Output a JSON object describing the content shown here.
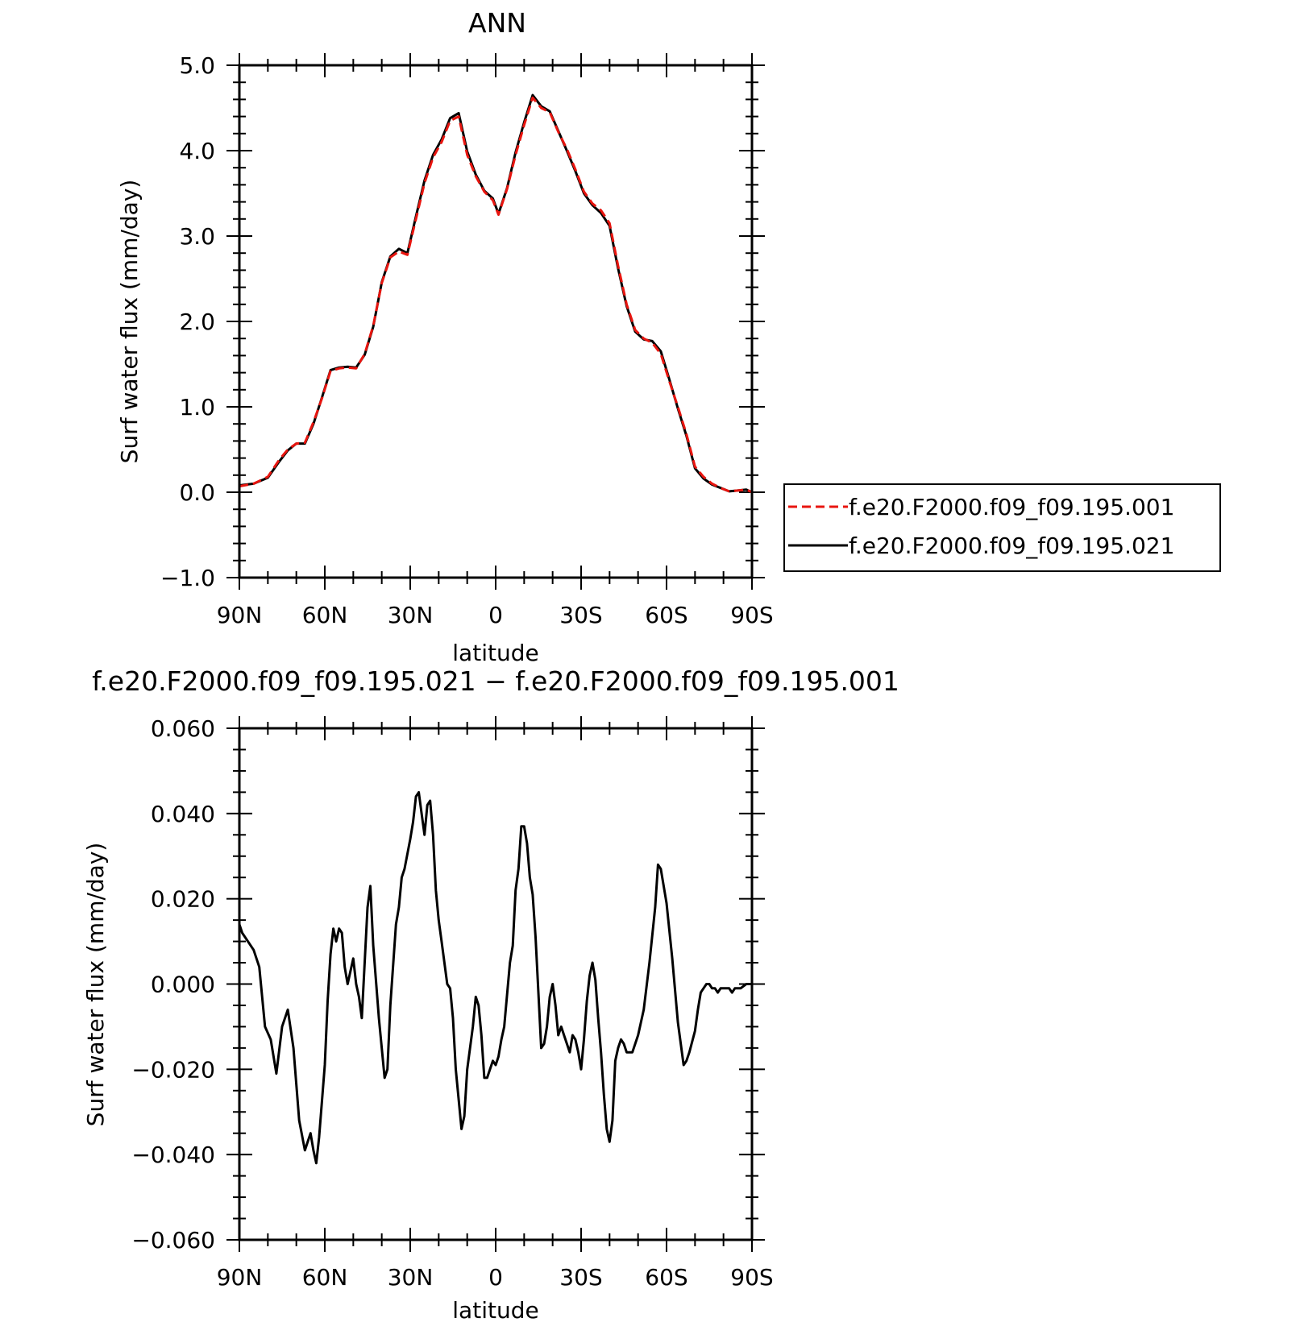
{
  "figure": {
    "panels": [
      "top",
      "bottom"
    ]
  },
  "chart_data": [
    {
      "type": "line",
      "title": "ANN",
      "xlabel": "latitude",
      "ylabel": "Surf water flux (mm/day)",
      "xlim": [
        90,
        -90
      ],
      "ylim": [
        -1.0,
        5.0
      ],
      "xticks": [
        90,
        60,
        30,
        0,
        -30,
        -60,
        -90
      ],
      "xticklabels": [
        "90N",
        "60N",
        "30N",
        "0",
        "30S",
        "60S",
        "90S"
      ],
      "yticks": [
        -1.0,
        0.0,
        1.0,
        2.0,
        3.0,
        4.0,
        5.0
      ],
      "yticklabels": [
        "−1.0",
        "0.0",
        "1.0",
        "2.0",
        "3.0",
        "4.0",
        "5.0"
      ],
      "legend": "outside-right",
      "x": [
        90,
        85,
        80,
        76,
        73,
        70,
        67,
        64,
        61,
        58,
        55,
        52,
        49,
        46,
        43,
        40,
        37,
        34,
        31,
        28,
        25,
        22,
        19,
        16,
        13,
        10,
        7,
        4,
        1,
        -1,
        -4,
        -7,
        -10,
        -13,
        -16,
        -19,
        -22,
        -25,
        -28,
        -31,
        -34,
        -37,
        -40,
        -43,
        -46,
        -49,
        -52,
        -55,
        -58,
        -61,
        -64,
        -67,
        -70,
        -73,
        -76,
        -79,
        -82,
        -85,
        -88,
        -90
      ],
      "series": [
        {
          "name": "f.e20.F2000.f09_f09.195.001",
          "color": "#e8150f",
          "dash": true,
          "values": [
            0.07,
            0.1,
            0.18,
            0.38,
            0.5,
            0.57,
            0.58,
            0.82,
            1.1,
            1.42,
            1.45,
            1.46,
            1.45,
            1.62,
            1.95,
            2.45,
            2.75,
            2.82,
            2.78,
            3.2,
            3.62,
            3.92,
            4.1,
            4.35,
            4.4,
            3.95,
            3.7,
            3.52,
            3.42,
            3.25,
            3.55,
            3.95,
            4.3,
            4.62,
            4.5,
            4.45,
            4.22,
            4.02,
            3.78,
            3.52,
            3.38,
            3.3,
            3.15,
            2.65,
            2.2,
            1.9,
            1.8,
            1.75,
            1.62,
            1.3,
            1.0,
            0.68,
            0.3,
            0.18,
            0.1,
            0.05,
            0.01,
            0.02,
            0.03,
            0.0
          ]
        },
        {
          "name": "f.e20.F2000.f09_f09.195.021",
          "color": "#000000",
          "dash": false,
          "values": [
            0.08,
            0.1,
            0.17,
            0.36,
            0.49,
            0.57,
            0.57,
            0.8,
            1.11,
            1.43,
            1.46,
            1.47,
            1.46,
            1.61,
            1.94,
            2.46,
            2.76,
            2.85,
            2.8,
            3.23,
            3.65,
            3.95,
            4.13,
            4.38,
            4.44,
            3.99,
            3.72,
            3.53,
            3.44,
            3.26,
            3.56,
            3.98,
            4.33,
            4.65,
            4.52,
            4.46,
            4.23,
            4.0,
            3.76,
            3.5,
            3.36,
            3.27,
            3.12,
            2.62,
            2.18,
            1.88,
            1.79,
            1.77,
            1.65,
            1.32,
            0.98,
            0.66,
            0.28,
            0.16,
            0.09,
            0.05,
            0.01,
            0.02,
            0.03,
            0.0
          ]
        }
      ]
    },
    {
      "type": "line",
      "title": "f.e20.F2000.f09_f09.195.021 − f.e20.F2000.f09_f09.195.001",
      "xlabel": "latitude",
      "ylabel": "Surf water flux (mm/day)",
      "xlim": [
        90,
        -90
      ],
      "ylim": [
        -0.06,
        0.06
      ],
      "xticks": [
        90,
        60,
        30,
        0,
        -30,
        -60,
        -90
      ],
      "xticklabels": [
        "90N",
        "60N",
        "30N",
        "0",
        "30S",
        "60S",
        "90S"
      ],
      "yticks": [
        -0.06,
        -0.04,
        -0.02,
        0.0,
        0.02,
        0.04,
        0.06
      ],
      "yticklabels": [
        "−0.060",
        "−0.040",
        "−0.020",
        "0.000",
        "0.020",
        "0.040",
        "0.060"
      ],
      "x": [
        90,
        89,
        87,
        85,
        83,
        81,
        79,
        77,
        75,
        73,
        71,
        69,
        67,
        65,
        64,
        63,
        62,
        60,
        59,
        58,
        57,
        56,
        55,
        54,
        53,
        52,
        50,
        49,
        48,
        47,
        45,
        44,
        43,
        41,
        39,
        38,
        37,
        35,
        34,
        33,
        32,
        30,
        29,
        28,
        27,
        26,
        25,
        24,
        23,
        22,
        21,
        20,
        19,
        17,
        16,
        15,
        14,
        12,
        11,
        10,
        8,
        7,
        6,
        5,
        4,
        3,
        1,
        0,
        -1,
        -2,
        -3,
        -5,
        -6,
        -7,
        -8,
        -9,
        -10,
        -11,
        -12,
        -13,
        -14,
        -15,
        -16,
        -17,
        -18,
        -19,
        -20,
        -21,
        -22,
        -23,
        -24,
        -26,
        -27,
        -28,
        -29,
        -30,
        -31,
        -32,
        -33,
        -34,
        -35,
        -36,
        -37,
        -38,
        -39,
        -40,
        -41,
        -42,
        -43,
        -44,
        -45,
        -46,
        -48,
        -50,
        -52,
        -54,
        -56,
        -57,
        -58,
        -60,
        -62,
        -64,
        -66,
        -67,
        -68,
        -70,
        -71,
        -72,
        -73,
        -74,
        -75,
        -76,
        -77,
        -78,
        -79,
        -80,
        -81,
        -82,
        -83,
        -84,
        -85,
        -86,
        -88,
        -90
      ],
      "series": [
        {
          "name": "",
          "color": "#000000",
          "dash": false,
          "values": [
            0.014,
            0.012,
            0.01,
            0.008,
            0.004,
            -0.01,
            -0.013,
            -0.021,
            -0.01,
            -0.006,
            -0.015,
            -0.032,
            -0.039,
            -0.035,
            -0.039,
            -0.042,
            -0.036,
            -0.019,
            -0.004,
            0.007,
            0.013,
            0.01,
            0.013,
            0.012,
            0.004,
            0.0,
            0.006,
            0.0,
            -0.003,
            -0.008,
            0.018,
            0.023,
            0.009,
            -0.008,
            -0.022,
            -0.02,
            -0.005,
            0.014,
            0.018,
            0.025,
            0.027,
            0.034,
            0.038,
            0.044,
            0.045,
            0.04,
            0.035,
            0.042,
            0.043,
            0.035,
            0.022,
            0.015,
            0.01,
            0.0,
            -0.001,
            -0.008,
            -0.02,
            -0.034,
            -0.031,
            -0.02,
            -0.01,
            -0.003,
            -0.005,
            -0.012,
            -0.022,
            -0.022,
            -0.018,
            -0.019,
            -0.017,
            -0.013,
            -0.01,
            0.005,
            0.009,
            0.022,
            0.027,
            0.037,
            0.037,
            0.033,
            0.025,
            0.021,
            0.011,
            -0.002,
            -0.015,
            -0.014,
            -0.01,
            -0.003,
            0.0,
            -0.005,
            -0.012,
            -0.01,
            -0.012,
            -0.016,
            -0.012,
            -0.013,
            -0.016,
            -0.02,
            -0.013,
            -0.004,
            0.002,
            0.005,
            0.001,
            -0.008,
            -0.016,
            -0.026,
            -0.034,
            -0.037,
            -0.032,
            -0.018,
            -0.015,
            -0.013,
            -0.014,
            -0.016,
            -0.016,
            -0.012,
            -0.006,
            0.005,
            0.018,
            0.028,
            0.027,
            0.019,
            0.006,
            -0.009,
            -0.019,
            -0.018,
            -0.016,
            -0.011,
            -0.006,
            -0.002,
            -0.001,
            0.0,
            0.0,
            -0.001,
            -0.001,
            -0.002,
            -0.001,
            -0.001,
            -0.001,
            -0.001,
            -0.002,
            -0.001,
            -0.001,
            -0.001,
            0.0,
            0.0
          ]
        }
      ]
    }
  ]
}
